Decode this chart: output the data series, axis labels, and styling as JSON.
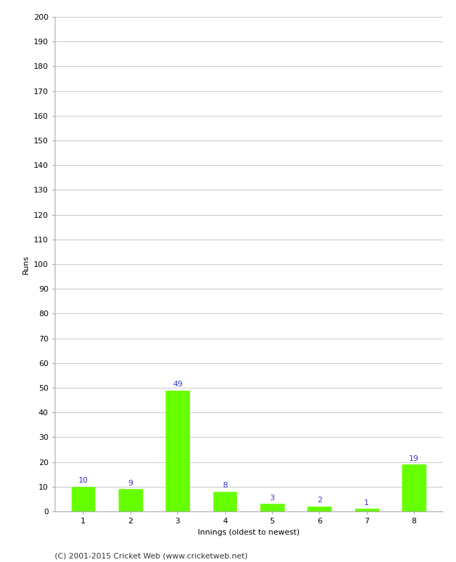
{
  "categories": [
    "1",
    "2",
    "3",
    "4",
    "5",
    "6",
    "7",
    "8"
  ],
  "values": [
    10,
    9,
    49,
    8,
    3,
    2,
    1,
    19
  ],
  "bar_color": "#66ff00",
  "bar_edge_color": "#66ff00",
  "label_color": "#3333cc",
  "ylabel": "Runs",
  "xlabel": "Innings (oldest to newest)",
  "ylim": [
    0,
    200
  ],
  "yticks": [
    0,
    10,
    20,
    30,
    40,
    50,
    60,
    70,
    80,
    90,
    100,
    110,
    120,
    130,
    140,
    150,
    160,
    170,
    180,
    190,
    200
  ],
  "footer": "(C) 2001-2015 Cricket Web (www.cricketweb.net)",
  "background_color": "#ffffff",
  "grid_color": "#cccccc",
  "label_fontsize": 8,
  "axis_fontsize": 8,
  "footer_fontsize": 8,
  "ylabel_fontsize": 8,
  "xlabel_fontsize": 8
}
